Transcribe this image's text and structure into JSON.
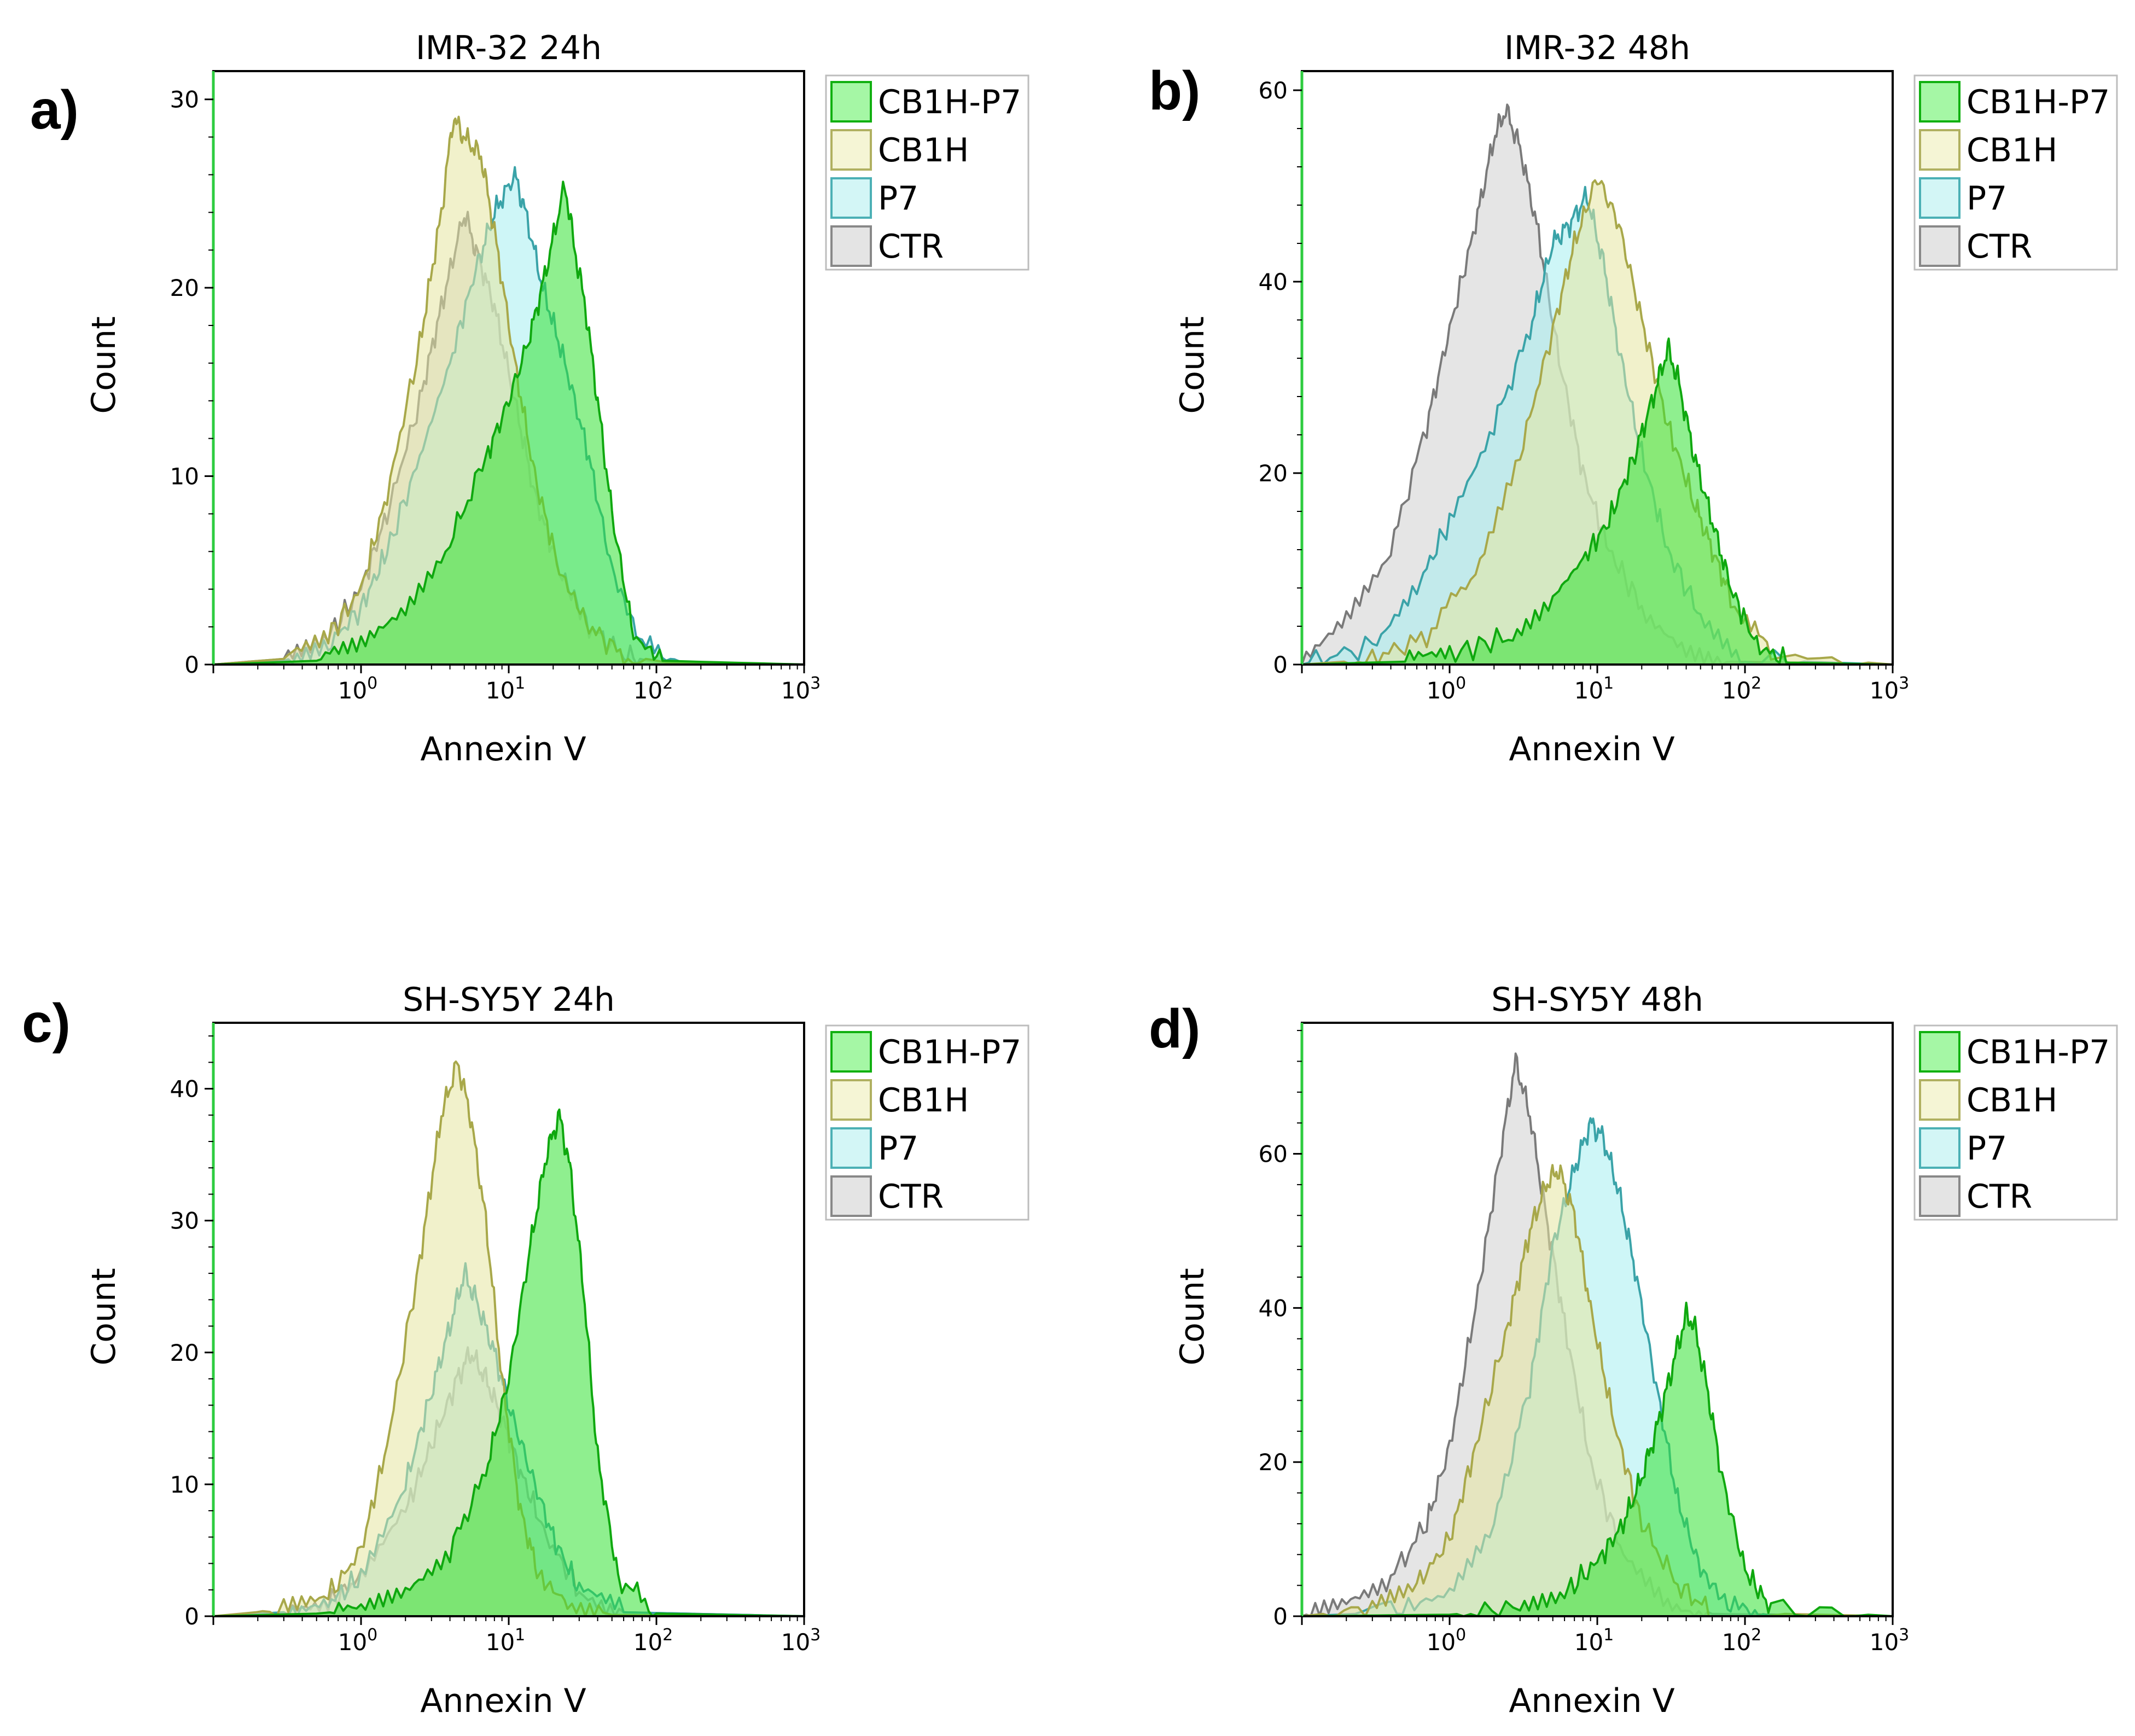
{
  "chart_data": [
    {
      "panel": "a)",
      "type": "area",
      "title": "IMR-32  24h",
      "xlabel": "Annexin V",
      "ylabel": "Count",
      "xscale": "log",
      "xlim": [
        0.1,
        1000
      ],
      "ylim": [
        0,
        31.5
      ],
      "yticks": [
        0,
        10,
        20,
        30
      ],
      "xticks": [
        {
          "value": 1,
          "base": "10",
          "exp": "0"
        },
        {
          "value": 10,
          "base": "10",
          "exp": "1"
        },
        {
          "value": 100,
          "base": "10",
          "exp": "2"
        },
        {
          "value": 1000,
          "base": "10",
          "exp": "3"
        }
      ],
      "legend": [
        "CB1H-P7",
        "CB1H",
        "P7",
        "CTR"
      ],
      "series": [
        {
          "name": "CTR",
          "x": [
            0.1,
            0.3,
            0.6,
            1.0,
            1.5,
            2.5,
            3.5,
            5,
            6,
            8,
            11,
            15,
            22,
            35,
            60,
            100,
            1000
          ],
          "y": [
            0,
            0.3,
            1.5,
            4,
            8,
            14,
            19,
            24,
            22,
            19,
            14,
            9,
            5,
            2,
            0.5,
            0.1,
            0
          ]
        },
        {
          "name": "P7",
          "x": [
            0.1,
            0.3,
            0.6,
            1.0,
            1.5,
            2.5,
            4,
            6,
            8,
            11,
            13,
            17,
            24,
            35,
            50,
            80,
            150,
            1000
          ],
          "y": [
            0,
            0.2,
            1,
            3,
            6,
            11,
            16,
            21,
            24,
            26,
            24,
            20,
            16,
            11,
            5,
            1,
            0.1,
            0
          ]
        },
        {
          "name": "CB1H",
          "x": [
            0.1,
            0.3,
            0.6,
            1.0,
            1.5,
            2.5,
            3.5,
            4.2,
            5,
            6.5,
            8,
            11,
            15,
            22,
            35,
            60,
            120,
            1000
          ],
          "y": [
            0,
            0.3,
            1.5,
            4,
            9,
            17,
            24,
            29,
            28,
            27,
            23,
            16,
            10,
            5,
            2,
            0.5,
            0.1,
            0
          ]
        },
        {
          "name": "CB1H-P7",
          "x": [
            0.1,
            0.5,
            1.0,
            2,
            4,
            7,
            10,
            14,
            18,
            24,
            28,
            33,
            40,
            50,
            70,
            110,
            1000
          ],
          "y": [
            0,
            0.2,
            1,
            3,
            6.5,
            11,
            14,
            17.5,
            21,
            25.5,
            22,
            19,
            14,
            8,
            1.5,
            0.2,
            0
          ]
        }
      ]
    },
    {
      "panel": "b)",
      "type": "area",
      "title": "IMR-32  48h",
      "xlabel": "Annexin V",
      "ylabel": "Count",
      "xscale": "log",
      "xlim": [
        0.1,
        1000
      ],
      "ylim": [
        0,
        62
      ],
      "yticks": [
        0,
        20,
        40,
        60
      ],
      "xticks": [
        {
          "value": 1,
          "base": "10",
          "exp": "0"
        },
        {
          "value": 10,
          "base": "10",
          "exp": "1"
        },
        {
          "value": 100,
          "base": "10",
          "exp": "2"
        },
        {
          "value": 1000,
          "base": "10",
          "exp": "3"
        }
      ],
      "legend": [
        "CB1H-P7",
        "CB1H",
        "P7",
        "CTR"
      ],
      "series": [
        {
          "name": "CTR",
          "x": [
            0.1,
            0.2,
            0.4,
            0.7,
            1.0,
            1.5,
            2.0,
            2.4,
            3,
            4,
            5.5,
            8,
            12,
            20,
            40,
            80,
            1000
          ],
          "y": [
            0,
            5,
            12,
            25,
            35,
            46,
            55,
            58,
            54,
            45,
            32,
            20,
            12,
            6,
            2,
            0.3,
            0
          ]
        },
        {
          "name": "P7",
          "x": [
            0.1,
            0.3,
            0.6,
            1.0,
            2,
            3.5,
            5,
            6.5,
            8.5,
            11,
            14,
            20,
            30,
            50,
            100,
            1000
          ],
          "y": [
            0,
            2,
            8,
            15,
            25,
            35,
            44,
            46,
            49,
            42,
            33,
            22,
            12,
            5,
            0.5,
            0
          ]
        },
        {
          "name": "CB1H",
          "x": [
            0.1,
            0.3,
            0.7,
            1.5,
            3,
            5,
            7,
            10,
            14,
            20,
            30,
            45,
            60,
            80,
            150,
            1000
          ],
          "y": [
            0,
            0.5,
            3,
            10,
            22,
            35,
            44,
            51,
            46,
            36,
            25,
            17,
            12,
            7,
            1,
            0
          ]
        },
        {
          "name": "CB1H-P7",
          "x": [
            0.1,
            0.5,
            1.0,
            2.5,
            5,
            8,
            12,
            18,
            24,
            30,
            35,
            45,
            60,
            80,
            120,
            200,
            1000
          ],
          "y": [
            0,
            0.3,
            1,
            3,
            7,
            11,
            15,
            22,
            28,
            33,
            30,
            22,
            15,
            8,
            2,
            0.2,
            0
          ]
        }
      ]
    },
    {
      "panel": "c)",
      "type": "area",
      "title": "SH-SY5Y 24h",
      "xlabel": "Annexin V",
      "ylabel": "Count",
      "xscale": "log",
      "xlim": [
        0.1,
        1000
      ],
      "ylim": [
        0,
        45
      ],
      "yticks": [
        0,
        10,
        20,
        30,
        40
      ],
      "xticks": [
        {
          "value": 1,
          "base": "10",
          "exp": "0"
        },
        {
          "value": 10,
          "base": "10",
          "exp": "1"
        },
        {
          "value": 100,
          "base": "10",
          "exp": "2"
        },
        {
          "value": 1000,
          "base": "10",
          "exp": "3"
        }
      ],
      "legend": [
        "CB1H-P7",
        "CB1H",
        "P7",
        "CTR"
      ],
      "series": [
        {
          "name": "CTR",
          "x": [
            0.1,
            0.3,
            0.6,
            1.0,
            2,
            3,
            4.5,
            5.5,
            7,
            9,
            12,
            18,
            30,
            60,
            1000
          ],
          "y": [
            0,
            0.3,
            1,
            3,
            8,
            13,
            18,
            20,
            18,
            15,
            11,
            6,
            2,
            0.3,
            0
          ]
        },
        {
          "name": "P7",
          "x": [
            0.1,
            0.3,
            0.6,
            1.0,
            2,
            3,
            4,
            5,
            6,
            8,
            10,
            14,
            20,
            30,
            60,
            1000
          ],
          "y": [
            0,
            0.3,
            1,
            3,
            10,
            17,
            22,
            26,
            24,
            20,
            16,
            11,
            6,
            2,
            0.3,
            0
          ]
        },
        {
          "name": "CB1H",
          "x": [
            0.1,
            0.3,
            0.6,
            1.0,
            1.5,
            2.5,
            3.5,
            4.5,
            5.5,
            7,
            9,
            12,
            16,
            25,
            50,
            1000
          ],
          "y": [
            0,
            0.5,
            1.5,
            5,
            13,
            27,
            38,
            42,
            38,
            30,
            18,
            8,
            3,
            1,
            0.1,
            0
          ]
        },
        {
          "name": "CB1H-P7",
          "x": [
            0.1,
            0.5,
            1.0,
            2,
            4,
            7,
            10,
            14,
            18,
            22,
            26,
            32,
            40,
            55,
            100,
            1000
          ],
          "y": [
            0,
            0.2,
            0.5,
            2,
            5,
            11,
            18,
            28,
            35,
            38,
            34,
            25,
            12,
            3,
            0.2,
            0
          ]
        }
      ]
    },
    {
      "panel": "d)",
      "type": "area",
      "title": "SH-SY5Y  48h",
      "xlabel": "Annexin V",
      "ylabel": "Count",
      "xscale": "log",
      "xlim": [
        0.1,
        1000
      ],
      "ylim": [
        0,
        77
      ],
      "yticks": [
        0,
        20,
        40,
        60
      ],
      "xticks": [
        {
          "value": 1,
          "base": "10",
          "exp": "0"
        },
        {
          "value": 10,
          "base": "10",
          "exp": "1"
        },
        {
          "value": 100,
          "base": "10",
          "exp": "2"
        },
        {
          "value": 1000,
          "base": "10",
          "exp": "3"
        }
      ],
      "legend": [
        "CB1H-P7",
        "CB1H",
        "P7",
        "CTR"
      ],
      "series": [
        {
          "name": "CTR",
          "x": [
            0.1,
            0.2,
            0.4,
            0.7,
            1.0,
            1.5,
            2.2,
            2.8,
            3.5,
            4.5,
            6,
            9,
            15,
            30,
            60,
            1000
          ],
          "y": [
            0,
            2,
            5,
            12,
            22,
            40,
            60,
            72,
            65,
            52,
            38,
            20,
            8,
            2,
            0.3,
            0
          ]
        },
        {
          "name": "P7",
          "x": [
            0.1,
            0.4,
            1.0,
            2,
            3.5,
            5,
            7,
            9,
            11,
            14,
            18,
            25,
            35,
            50,
            80,
            150,
            1000
          ],
          "y": [
            0,
            0.5,
            3,
            12,
            30,
            48,
            58,
            64,
            62,
            55,
            45,
            30,
            15,
            6,
            1,
            0.1,
            0
          ]
        },
        {
          "name": "CB1H",
          "x": [
            0.1,
            0.3,
            0.6,
            1.0,
            1.5,
            2.5,
            3.5,
            4.5,
            5.5,
            7,
            9,
            13,
            20,
            35,
            60,
            1000
          ],
          "y": [
            0,
            1,
            4,
            10,
            22,
            38,
            50,
            56,
            58,
            52,
            40,
            25,
            12,
            4,
            0.5,
            0
          ]
        },
        {
          "name": "CB1H-P7",
          "x": [
            0.1,
            1.0,
            3,
            6,
            10,
            15,
            20,
            25,
            30,
            35,
            40,
            45,
            55,
            70,
            100,
            150,
            1000
          ],
          "y": [
            0,
            0.2,
            1,
            3,
            7,
            12,
            18,
            24,
            30,
            35,
            39,
            38,
            30,
            18,
            6,
            1,
            0
          ]
        }
      ]
    }
  ],
  "styles": {
    "CB1H-P7": {
      "fill": "#33e133",
      "stroke": "#0fa80f",
      "swatch": "#a5f7a5",
      "swatch_stroke": "#10b010",
      "opacity": 0.55
    },
    "CB1H": {
      "fill": "#e6e6a0",
      "stroke": "#a8a84a",
      "swatch": "#f5f5d5",
      "swatch_stroke": "#b0b060",
      "opacity": 0.55
    },
    "P7": {
      "fill": "#a6eef0",
      "stroke": "#3aa3a8",
      "swatch": "#d3f6f6",
      "swatch_stroke": "#4bb0b5",
      "opacity": 0.55
    },
    "CTR": {
      "fill": "#cfcfcf",
      "stroke": "#7a7a7a",
      "swatch": "#e4e4e4",
      "swatch_stroke": "#888888",
      "opacity": 0.55
    }
  }
}
